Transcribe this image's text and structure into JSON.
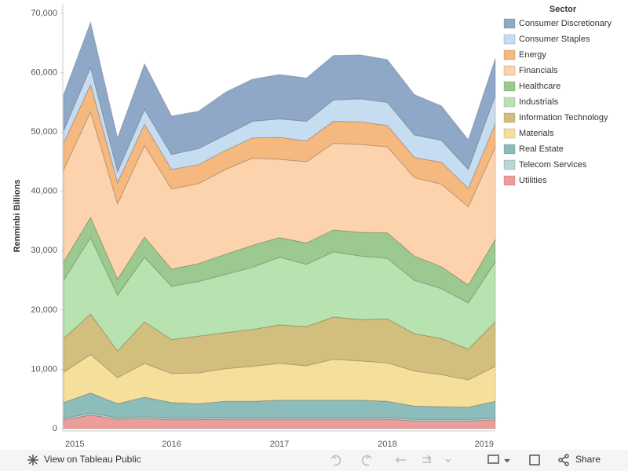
{
  "chart_data": {
    "type": "stacked_area",
    "y_label": "Renminbi Billions",
    "legend_title": "Sector",
    "legend": "right",
    "categories": [
      "2015",
      null,
      null,
      null,
      "2016",
      null,
      null,
      null,
      "2017",
      null,
      null,
      null,
      "2018",
      null,
      null,
      null,
      "2019"
    ],
    "ylim": [
      0,
      70000
    ],
    "yticks": [
      0,
      {
        "value": 10000,
        "label": "10,000"
      },
      {
        "value": 20000,
        "label": "20,000"
      },
      {
        "value": 30000,
        "label": "30,000"
      },
      {
        "value": 40000,
        "label": "40,000"
      },
      {
        "value": 50000,
        "label": "50,000"
      },
      {
        "value": 60000,
        "label": "60,000"
      },
      {
        "value": 70000,
        "label": "70,000"
      }
    ],
    "series": [
      {
        "name": "Utilities",
        "color": "#eb9d9a",
        "values": [
          1500,
          2300,
          1600,
          1700,
          1500,
          1500,
          1600,
          1600,
          1600,
          1600,
          1600,
          1600,
          1600,
          1300,
          1300,
          1300,
          1500
        ]
      },
      {
        "name": "Telecom Services",
        "color": "#b6d8d6",
        "values": [
          250,
          300,
          250,
          300,
          250,
          250,
          250,
          250,
          250,
          250,
          250,
          250,
          250,
          250,
          250,
          250,
          250
        ]
      },
      {
        "name": "Real Estate",
        "color": "#8dbdba",
        "values": [
          2650,
          3400,
          2350,
          3300,
          2650,
          2450,
          2750,
          2750,
          2950,
          2950,
          2950,
          2950,
          2750,
          2250,
          2150,
          2050,
          2850
        ]
      },
      {
        "name": "Materials",
        "color": "#f6df9b",
        "values": [
          5100,
          6500,
          4400,
          5700,
          4900,
          5200,
          5500,
          5900,
          6200,
          5800,
          6900,
          6600,
          6500,
          5900,
          5400,
          4600,
          5900
        ]
      },
      {
        "name": "Information Technology",
        "color": "#d2bf7e",
        "values": [
          5700,
          6800,
          4500,
          7000,
          5700,
          6200,
          6100,
          6200,
          6500,
          6600,
          7100,
          7000,
          7400,
          6300,
          6100,
          5200,
          7500
        ]
      },
      {
        "name": "Industrials",
        "color": "#b8e2b0",
        "values": [
          9800,
          12900,
          9400,
          10900,
          9000,
          9200,
          9800,
          10500,
          11400,
          10500,
          11000,
          10700,
          10200,
          9000,
          8400,
          7800,
          10100
        ]
      },
      {
        "name": "Healthcare",
        "color": "#9cc98f",
        "values": [
          3100,
          3400,
          2700,
          3400,
          2900,
          3000,
          3400,
          3700,
          3300,
          3600,
          3700,
          4000,
          4300,
          4100,
          3700,
          3000,
          3800
        ]
      },
      {
        "name": "Financials",
        "color": "#fdd3ae",
        "values": [
          15500,
          17800,
          12700,
          15400,
          13500,
          13500,
          14300,
          14700,
          13200,
          13700,
          14600,
          14800,
          14500,
          13200,
          13900,
          13200,
          15600
        ]
      },
      {
        "name": "Energy",
        "color": "#f5b97f",
        "values": [
          4500,
          4600,
          3600,
          3600,
          3300,
          3200,
          3200,
          3400,
          3700,
          3500,
          3700,
          3800,
          3600,
          3400,
          3700,
          3100,
          3900
        ]
      },
      {
        "name": "Consumer Staples",
        "color": "#c6dcf0",
        "values": [
          2100,
          2900,
          1800,
          2500,
          2500,
          2700,
          2600,
          2800,
          3100,
          3300,
          3600,
          3900,
          3900,
          3800,
          3700,
          3200,
          4800
        ]
      },
      {
        "name": "Consumer Discretionary",
        "color": "#8fa8c8",
        "values": [
          6100,
          7600,
          5700,
          7700,
          6500,
          6300,
          7200,
          7100,
          7500,
          7300,
          7500,
          7400,
          7200,
          6800,
          5800,
          5000,
          6200
        ]
      }
    ]
  },
  "toolbar": {
    "view_link": "View on Tableau Public",
    "share": "Share"
  }
}
